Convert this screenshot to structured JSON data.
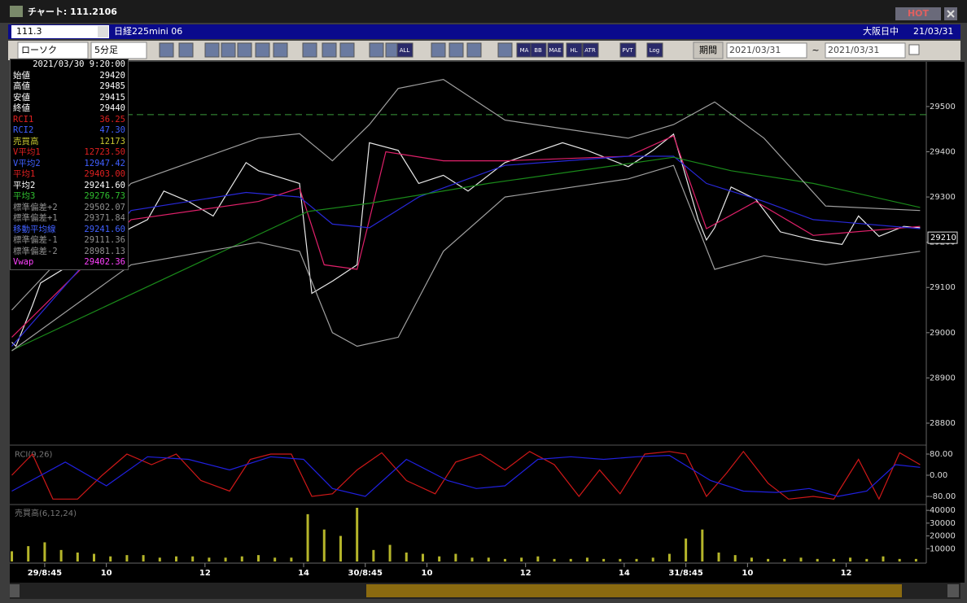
{
  "window": {
    "title": "チャート: 111.2106",
    "badge": "HOT"
  },
  "header": {
    "code": "111.3",
    "instrument": "日経225mini 06",
    "session": "大阪日中",
    "date": "21/03/31"
  },
  "toolbar": {
    "chart_type": "ローソク",
    "interval": "5分足",
    "buttons": [
      "ALL",
      "MA",
      "BB",
      "MAE",
      "HL",
      "ATR",
      "PVT",
      "Log"
    ],
    "period_label": "期間",
    "from": "2021/03/31",
    "separator": "~",
    "to": "2021/03/31"
  },
  "info_panel": {
    "datetime": "2021/03/30  9:20:00",
    "rows": [
      {
        "label": "始値",
        "value": "29420",
        "color": "#ffffff"
      },
      {
        "label": "高値",
        "value": "29485",
        "color": "#ffffff"
      },
      {
        "label": "安値",
        "value": "29415",
        "color": "#ffffff"
      },
      {
        "label": "終値",
        "value": "29440",
        "color": "#ffffff"
      },
      {
        "label": "RCI1",
        "value": "36.25",
        "color": "#e02020"
      },
      {
        "label": "RCI2",
        "value": "47.30",
        "color": "#4060ff"
      },
      {
        "label": "売買高",
        "value": "12173",
        "color": "#c8c830"
      },
      {
        "label": "V平均1",
        "value": "12723.50",
        "color": "#e02020"
      },
      {
        "label": "V平均2",
        "value": "12947.42",
        "color": "#4060ff"
      },
      {
        "label": "平均1",
        "value": "29403.00",
        "color": "#e02020"
      },
      {
        "label": "平均2",
        "value": "29241.60",
        "color": "#ffffff"
      },
      {
        "label": "平均3",
        "value": "29276.73",
        "color": "#30c030"
      },
      {
        "label": "標準偏差+2",
        "value": "29502.07",
        "color": "#909090"
      },
      {
        "label": "標準偏差+1",
        "value": "29371.84",
        "color": "#909090"
      },
      {
        "label": "移動平均線",
        "value": "29241.60",
        "color": "#4060ff"
      },
      {
        "label": "標準偏差-1",
        "value": "29111.36",
        "color": "#909090"
      },
      {
        "label": "標準偏差-2",
        "value": "28981.13",
        "color": "#909090"
      },
      {
        "label": "Vwap",
        "value": "29402.36",
        "color": "#ff40ff"
      }
    ]
  },
  "chart_data": [
    {
      "type": "line",
      "xlim": [
        -8.5,
        214.5
      ],
      "ylim": [
        28755,
        29570
      ],
      "yticks": [
        29500,
        29400,
        29300,
        29200,
        29100,
        29000,
        28900,
        28800
      ],
      "last_value": 29210,
      "hlines": [
        {
          "value": 29482,
          "color": "#3a9a3a",
          "dash": true
        }
      ],
      "series": [
        {
          "color": "#e8e8e8",
          "x": [
            -8,
            -7,
            -3,
            -1,
            21,
            25,
            29,
            35,
            41,
            49,
            52,
            62,
            65,
            70,
            76,
            79,
            86,
            91,
            97,
            103,
            112,
            126,
            132,
            142,
            148,
            153,
            157,
            159,
            161,
            163,
            167,
            173,
            179,
            187,
            194,
            198,
            203,
            209,
            213
          ],
          "values": [
            28979,
            28970,
            29060,
            29110,
            29232,
            29250,
            29313,
            29290,
            29258,
            29376,
            29358,
            29330,
            29087,
            29114,
            29150,
            29420,
            29403,
            29330,
            29348,
            29313,
            29376,
            29420,
            29403,
            29367,
            29403,
            29439,
            29313,
            29250,
            29205,
            29232,
            29322,
            29295,
            29223,
            29205,
            29195,
            29258,
            29213,
            29235,
            29232
          ]
        },
        {
          "color": "#e0206a",
          "x": [
            -8,
            21,
            52,
            62,
            68,
            76,
            79,
            83,
            97,
            112,
            142,
            153,
            161,
            173,
            187,
            213
          ],
          "values": [
            28990,
            29250,
            29290,
            29320,
            29150,
            29140,
            29250,
            29400,
            29380,
            29380,
            29390,
            29435,
            29230,
            29290,
            29215,
            29235
          ]
        },
        {
          "color": "#2828d8",
          "x": [
            -8,
            21,
            49,
            62,
            70,
            79,
            91,
            112,
            142,
            153,
            161,
            175,
            187,
            213
          ],
          "values": [
            28970,
            29270,
            29310,
            29300,
            29240,
            29232,
            29300,
            29370,
            29390,
            29390,
            29330,
            29290,
            29250,
            29230
          ]
        },
        {
          "color": "#1a8a1a",
          "x": [
            -8,
            64,
            79,
            108,
            153,
            167,
            187,
            213
          ],
          "values": [
            28961,
            29268,
            29286,
            29330,
            29388,
            29358,
            29330,
            29277
          ]
        },
        {
          "color": "#a0a0a0",
          "x": [
            -8,
            21,
            52,
            62,
            70,
            79,
            86,
            97,
            112,
            142,
            153,
            163,
            175,
            190,
            213
          ],
          "values": [
            29050,
            29330,
            29430,
            29440,
            29380,
            29460,
            29540,
            29560,
            29470,
            29430,
            29460,
            29510,
            29430,
            29280,
            29270
          ]
        },
        {
          "color": "#a0a0a0",
          "x": [
            -8,
            21,
            52,
            62,
            70,
            76,
            86,
            97,
            112,
            142,
            153,
            163,
            175,
            190,
            213
          ],
          "values": [
            28960,
            29150,
            29200,
            29180,
            29000,
            28970,
            28990,
            29180,
            29300,
            29340,
            29370,
            29140,
            29170,
            29150,
            29180
          ]
        }
      ]
    },
    {
      "type": "line",
      "title": "RCI(9,26)",
      "xlim": [
        -8.5,
        214.5
      ],
      "ylim": [
        -100,
        100
      ],
      "yticks": [
        {
          "value": 80,
          "label": "80.00"
        },
        {
          "value": 0,
          "label": "0.00"
        },
        {
          "value": -80,
          "label": "-80.00"
        }
      ],
      "series": [
        {
          "color": "#d01818",
          "x": [
            -8,
            -3,
            2,
            8,
            14,
            20,
            26,
            32,
            38,
            45,
            50,
            55,
            60,
            65,
            70,
            76,
            82,
            88,
            95,
            100,
            106,
            112,
            118,
            124,
            130,
            135,
            140,
            146,
            152,
            156,
            161,
            166,
            170,
            176,
            181,
            187,
            192,
            198,
            203,
            208,
            213
          ],
          "values": [
            0,
            80,
            -90,
            -90,
            0,
            80,
            40,
            80,
            -20,
            -60,
            60,
            80,
            80,
            -80,
            -70,
            20,
            85,
            -20,
            -70,
            50,
            80,
            20,
            90,
            40,
            -80,
            20,
            -70,
            80,
            90,
            80,
            -80,
            10,
            90,
            -30,
            -90,
            -80,
            -90,
            60,
            -90,
            85,
            40
          ]
        },
        {
          "color": "#2020e0",
          "x": [
            -8,
            5,
            15,
            25,
            35,
            45,
            55,
            63,
            70,
            78,
            88,
            98,
            105,
            112,
            120,
            128,
            136,
            144,
            152,
            162,
            170,
            178,
            186,
            193,
            200,
            207,
            213
          ],
          "values": [
            -60,
            50,
            -40,
            70,
            60,
            20,
            70,
            60,
            -50,
            -80,
            60,
            -20,
            -50,
            -40,
            60,
            70,
            60,
            70,
            75,
            -20,
            -60,
            -65,
            -50,
            -80,
            -60,
            40,
            30
          ]
        }
      ]
    },
    {
      "type": "bar",
      "title": "売買高(6,12,24)",
      "xlim": [
        -8.5,
        214.5
      ],
      "ylim": [
        0,
        42000
      ],
      "yticks": [
        40000,
        30000,
        20000,
        10000
      ],
      "xticks": [
        {
          "value": 0,
          "label": "29/8:45"
        },
        {
          "value": 15,
          "label": "10"
        },
        {
          "value": 39,
          "label": "12"
        },
        {
          "value": 63,
          "label": "14"
        },
        {
          "value": 78,
          "label": "30/8:45"
        },
        {
          "value": 93,
          "label": "10"
        },
        {
          "value": 117,
          "label": "12"
        },
        {
          "value": 141,
          "label": "14"
        },
        {
          "value": 156,
          "label": "31/8:45"
        },
        {
          "value": 171,
          "label": "10"
        },
        {
          "value": 195,
          "label": "12"
        }
      ],
      "series": [
        {
          "color": "#b5b52a",
          "x": [
            -8,
            -4,
            0,
            4,
            8,
            12,
            16,
            20,
            24,
            28,
            32,
            36,
            40,
            44,
            48,
            52,
            56,
            60,
            64,
            68,
            72,
            76,
            80,
            84,
            88,
            92,
            96,
            100,
            104,
            108,
            112,
            116,
            120,
            124,
            128,
            132,
            136,
            140,
            144,
            148,
            152,
            156,
            160,
            164,
            168,
            172,
            176,
            180,
            184,
            188,
            192,
            196,
            200,
            204,
            208,
            212
          ],
          "values": [
            8000,
            12000,
            15000,
            9000,
            7000,
            6000,
            4000,
            5000,
            5000,
            3000,
            4000,
            4000,
            3000,
            3000,
            4000,
            5000,
            3000,
            3000,
            37000,
            25000,
            20000,
            42000,
            9000,
            13000,
            7000,
            6000,
            4000,
            6000,
            3000,
            3000,
            2000,
            3000,
            4000,
            2000,
            2000,
            3000,
            2000,
            2000,
            2000,
            3000,
            6000,
            18000,
            25000,
            7000,
            5000,
            3000,
            2000,
            2000,
            3000,
            2000,
            2000,
            3000,
            2000,
            4000,
            2000,
            2000
          ]
        }
      ]
    }
  ]
}
